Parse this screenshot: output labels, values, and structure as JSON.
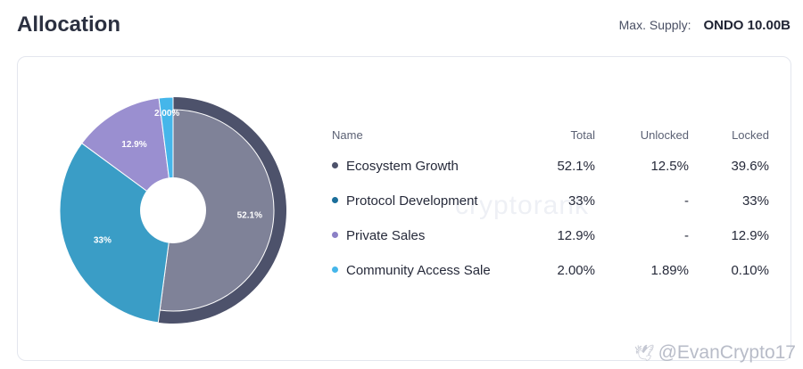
{
  "header": {
    "title": "Allocation",
    "supply_label": "Max. Supply:",
    "supply_value": "ONDO 10.00B"
  },
  "table": {
    "columns": [
      "Name",
      "Total",
      "Unlocked",
      "Locked"
    ],
    "rows": [
      {
        "name": "Ecosystem Growth",
        "total": "52.1%",
        "unlocked": "12.5%",
        "locked": "39.6%",
        "color": "#4d526b"
      },
      {
        "name": "Protocol Development",
        "total": "33%",
        "unlocked": "-",
        "locked": "33%",
        "color": "#1b6e9a"
      },
      {
        "name": "Private Sales",
        "total": "12.9%",
        "unlocked": "-",
        "locked": "12.9%",
        "color": "#8b80c6"
      },
      {
        "name": "Community Access Sale",
        "total": "2.00%",
        "unlocked": "1.89%",
        "locked": "0.10%",
        "color": "#45b6ea"
      }
    ]
  },
  "chart_data": {
    "type": "pie",
    "title": "Allocation",
    "slices": [
      {
        "name": "Ecosystem Growth",
        "value": 52.1,
        "label": "52.1%",
        "color": "#7f8298",
        "ring_color": "#4d526b"
      },
      {
        "name": "Protocol Development",
        "value": 33,
        "label": "33%",
        "color": "#3a9dc6"
      },
      {
        "name": "Private Sales",
        "value": 12.9,
        "label": "12.9%",
        "color": "#9a8fd0"
      },
      {
        "name": "Community Access Sale",
        "value": 2.0,
        "label": "2.00%",
        "color": "#45b6ea"
      }
    ]
  },
  "watermark": "cryptorank",
  "footer": {
    "bird_icon": "🕊",
    "handle": "@EvanCrypto17"
  }
}
